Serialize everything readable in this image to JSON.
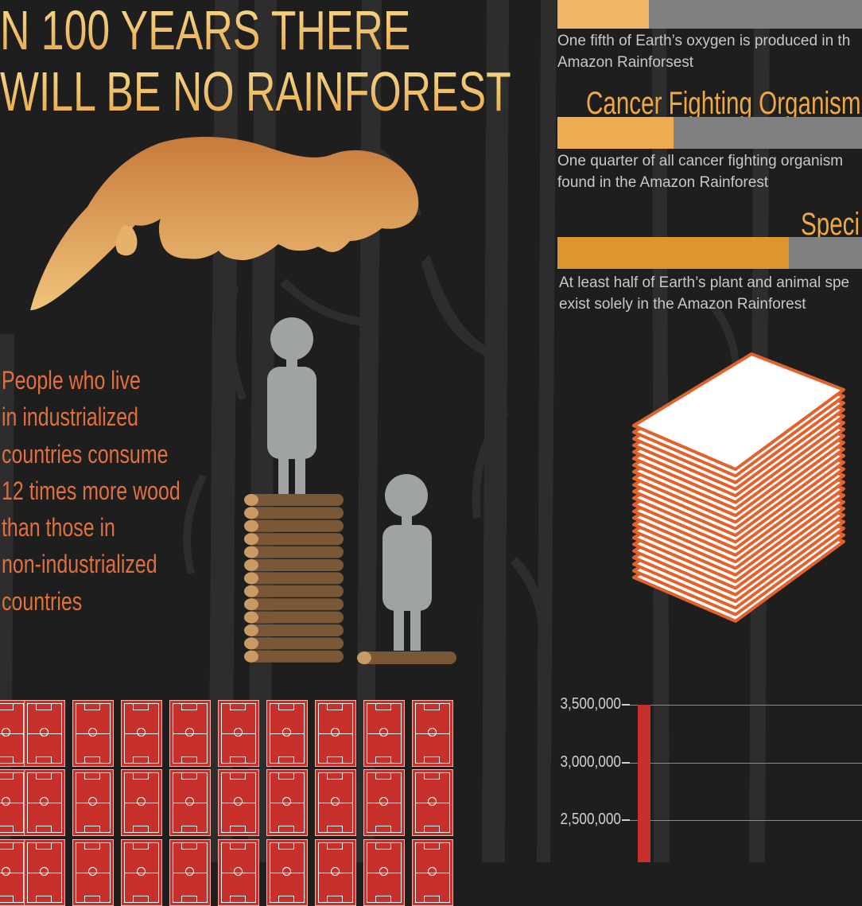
{
  "headline": {
    "line1": "N 100 YEARS THERE",
    "line2": "WILL BE NO RAINFOREST"
  },
  "wood_fact": {
    "lines": [
      "People who live",
      "in industrialized",
      "countries consume",
      "12 times more wood",
      "than those in",
      "non-industrialized",
      "countries"
    ]
  },
  "stats": [
    {
      "heading": "",
      "fraction": 0.3,
      "description_lines": [
        "One fifth of Earth’s oxygen is produced in th",
        "Amazon Rainforsest"
      ],
      "fill_color": "#efb667"
    },
    {
      "heading": "Cancer Fighting Organism",
      "fraction": 0.38,
      "description_lines": [
        "One quarter of all cancer fighting organism",
        "found in the Amazon Rainforest"
      ],
      "fill_color": "#eeac4f"
    },
    {
      "heading": "Speci",
      "fraction": 0.76,
      "description_lines": [
        "At least half of Earth’s plant and animal spe",
        "exist solely in the Amazon Rainforest"
      ],
      "fill_color": "#de9530"
    }
  ],
  "chart_data": {
    "type": "bar",
    "y_tick_labels": [
      "3,500,000",
      "3,000,000",
      "2,500,000"
    ],
    "ylim": [
      2500000,
      3500000
    ],
    "series": [
      {
        "values": [
          3500000
        ],
        "color": "#c8312b"
      }
    ]
  },
  "colors": {
    "background": "#1e1e1e",
    "tree_silhouette": "#2e2e2e",
    "gold": "#f2c468",
    "orange_text": "#e0703e",
    "person_gray": "#a0a3a4",
    "log_brown": "#7a5837",
    "field_red": "#c8312b",
    "paper_orange": "#e2622e"
  },
  "icons": [
    "otter-silhouette",
    "person-icon",
    "log-stack",
    "paper-stack",
    "soccer-field-icon"
  ],
  "fields_grid": {
    "rows": 3,
    "cols": 10
  }
}
